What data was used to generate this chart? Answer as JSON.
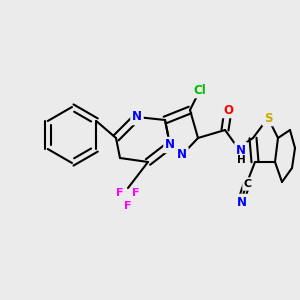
{
  "bg_color": "#ebebeb",
  "bond_color": "#000000",
  "bond_width": 1.5,
  "atom_colors": {
    "N": "#0000ff",
    "O": "#ff0000",
    "S": "#ccaa00",
    "Cl": "#00bb00",
    "F": "#ff00ff",
    "C": "#000000",
    "H": "#000000"
  },
  "font_size_atoms": 8.5,
  "font_size_small": 7.5
}
